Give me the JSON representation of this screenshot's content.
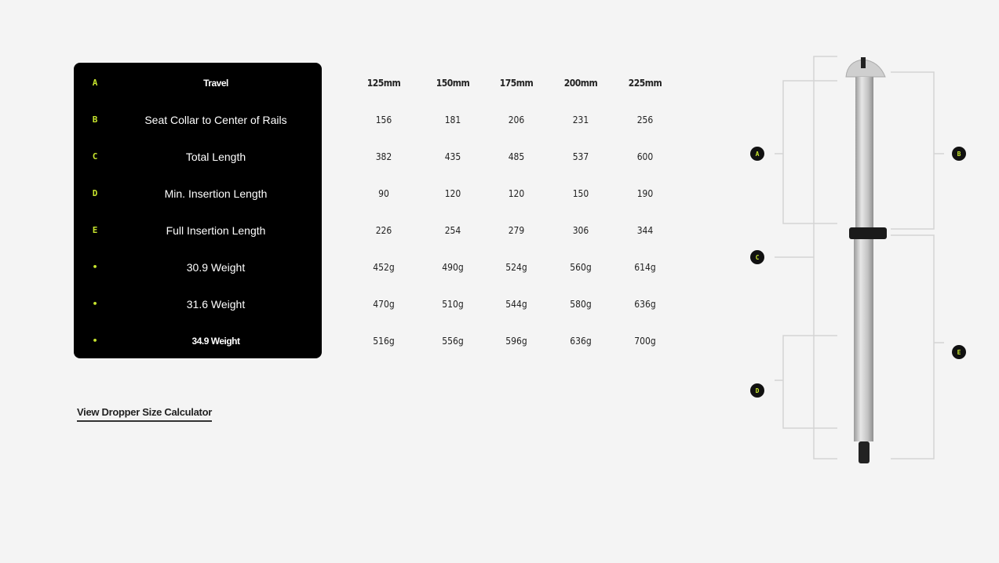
{
  "table": {
    "columns": [
      "125mm",
      "150mm",
      "175mm",
      "200mm",
      "225mm"
    ],
    "rows": [
      {
        "key": "A",
        "label": "Travel",
        "values": [
          "125mm",
          "150mm",
          "175mm",
          "200mm",
          "225mm"
        ]
      },
      {
        "key": "B",
        "label": "Seat Collar to Center of Rails",
        "values": [
          "156",
          "181",
          "206",
          "231",
          "256"
        ]
      },
      {
        "key": "C",
        "label": "Total Length",
        "values": [
          "382",
          "435",
          "485",
          "537",
          "600"
        ]
      },
      {
        "key": "D",
        "label": "Min. Insertion Length",
        "values": [
          "90",
          "120",
          "120",
          "150",
          "190"
        ]
      },
      {
        "key": "E",
        "label": "Full Insertion Length",
        "values": [
          "226",
          "254",
          "279",
          "306",
          "344"
        ]
      },
      {
        "key": "•",
        "label": "30.9 Weight",
        "values": [
          "452g",
          "490g",
          "524g",
          "560g",
          "614g"
        ]
      },
      {
        "key": "•",
        "label": "31.6 Weight",
        "values": [
          "470g",
          "510g",
          "544g",
          "580g",
          "636g"
        ]
      },
      {
        "key": "•",
        "label": "34.9 Weight",
        "values": [
          "516g",
          "556g",
          "596g",
          "636g",
          "700g"
        ]
      }
    ]
  },
  "link_label": "View Dropper Size Calculator",
  "diagram": {
    "markers": [
      "A",
      "B",
      "C",
      "D",
      "E"
    ]
  },
  "colors": {
    "accent": "#c8e62e",
    "panel": "#000000",
    "background": "#f4f4f4"
  }
}
